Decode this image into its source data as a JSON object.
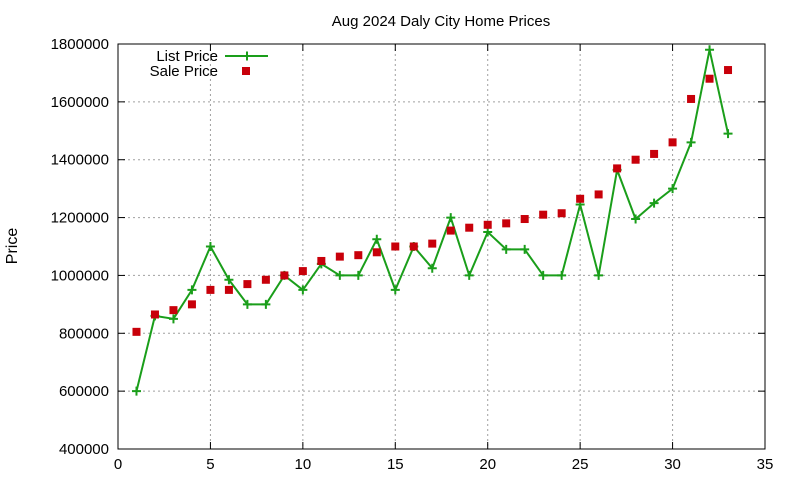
{
  "chart_data": {
    "type": "line",
    "title": "Aug 2024 Daly City Home Prices",
    "xlabel": "",
    "ylabel": "Price",
    "xlim": [
      0,
      35
    ],
    "ylim": [
      400000,
      1800000
    ],
    "x_ticks": [
      0,
      5,
      10,
      15,
      20,
      25,
      30,
      35
    ],
    "y_ticks": [
      400000,
      600000,
      800000,
      1000000,
      1200000,
      1400000,
      1600000,
      1800000
    ],
    "grid": true,
    "legend_position": "top-left",
    "x": [
      1,
      2,
      3,
      4,
      5,
      6,
      7,
      8,
      9,
      10,
      11,
      12,
      13,
      14,
      15,
      16,
      17,
      18,
      19,
      20,
      21,
      22,
      23,
      24,
      25,
      26,
      27,
      28,
      29,
      30,
      31,
      32,
      33
    ],
    "series": [
      {
        "name": "List Price",
        "style": "line-with-plus-markers",
        "color": "#1a9e1a",
        "values": [
          600000,
          860000,
          850000,
          950000,
          1100000,
          985000,
          900000,
          900000,
          1000000,
          950000,
          1040000,
          1000000,
          1000000,
          1125000,
          950000,
          1100000,
          1025000,
          1200000,
          1000000,
          1150000,
          1090000,
          1090000,
          1000000,
          1000000,
          1245000,
          1000000,
          1365000,
          1195000,
          1250000,
          1300000,
          1460000,
          1780000,
          1490000
        ]
      },
      {
        "name": "Sale Price",
        "style": "square-markers",
        "color": "#c8000a",
        "values": [
          805000,
          865000,
          880000,
          900000,
          950000,
          950000,
          970000,
          985000,
          1000000,
          1015000,
          1050000,
          1065000,
          1070000,
          1080000,
          1100000,
          1100000,
          1110000,
          1155000,
          1165000,
          1175000,
          1180000,
          1195000,
          1210000,
          1215000,
          1265000,
          1280000,
          1370000,
          1400000,
          1420000,
          1460000,
          1610000,
          1680000,
          1710000
        ]
      }
    ]
  }
}
